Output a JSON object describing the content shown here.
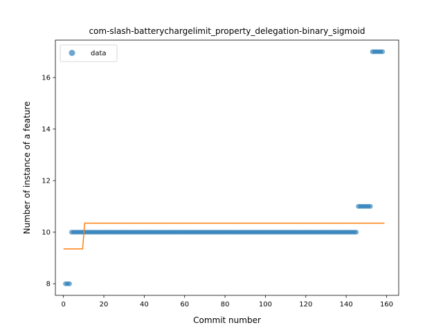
{
  "chart_data": {
    "type": "scatter",
    "title": "com-slash-batterychargelimit_property_delegation-binary_sigmoid",
    "xlabel": "Commit number",
    "ylabel": "Number of instance of a feature",
    "xlim": [
      -4,
      166
    ],
    "ylim": [
      7.55,
      17.45
    ],
    "xticks": [
      0,
      20,
      40,
      60,
      80,
      100,
      120,
      140,
      160
    ],
    "yticks": [
      8,
      10,
      12,
      14,
      16
    ],
    "legend": {
      "position": "top-left",
      "entries": [
        "data"
      ]
    },
    "colors": {
      "data": "#1f77b4",
      "fit": "#ff7f0e"
    },
    "series": [
      {
        "name": "data",
        "kind": "points",
        "segments": [
          {
            "x_from": 1,
            "x_to": 3,
            "y": 8
          },
          {
            "x_from": 4,
            "x_to": 145,
            "y": 10
          },
          {
            "x_from": 146,
            "x_to": 152,
            "y": 11
          },
          {
            "x_from": 153,
            "x_to": 158,
            "y": 17
          }
        ]
      },
      {
        "kind": "line",
        "x": [
          0,
          9.5,
          10.5,
          159
        ],
        "y": [
          9.35,
          9.35,
          10.35,
          10.35
        ]
      }
    ]
  }
}
